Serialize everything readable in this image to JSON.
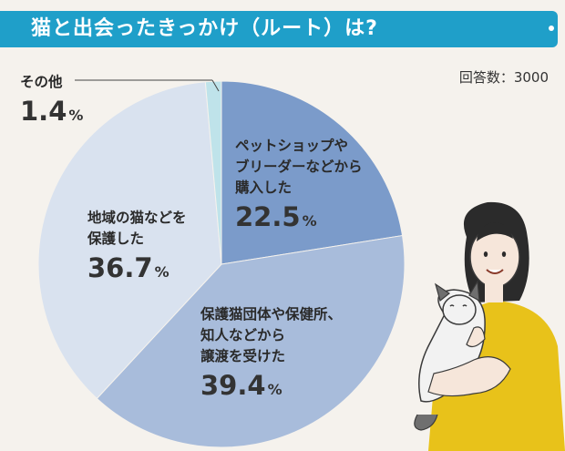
{
  "title": "猫と出会ったきっかけ（ルート）は?",
  "respondents": "回答数：3000",
  "chart_data": {
    "type": "pie",
    "title": "猫と出会ったきっかけ（ルート）は?",
    "start": "top, clockwise",
    "slices": [
      {
        "label_lines": [
          "ペットショップや",
          "ブリーダーなどから",
          "購入した"
        ],
        "value": 22.5,
        "value_text": "22.5",
        "unit": "%",
        "color": "#7b9bca"
      },
      {
        "label_lines": [
          "保護猫団体や保健所、",
          "知人などから",
          "譲渡を受けた"
        ],
        "value": 39.4,
        "value_text": "39.4",
        "unit": "%",
        "color": "#a8bcdb"
      },
      {
        "label_lines": [
          "地域の猫などを",
          "保護した"
        ],
        "value": 36.7,
        "value_text": "36.7",
        "unit": "%",
        "color": "#d9e2ef"
      },
      {
        "label_lines": [
          "その他"
        ],
        "value": 1.4,
        "value_text": "1.4",
        "unit": "%",
        "color": "#bfe3ea"
      }
    ]
  }
}
